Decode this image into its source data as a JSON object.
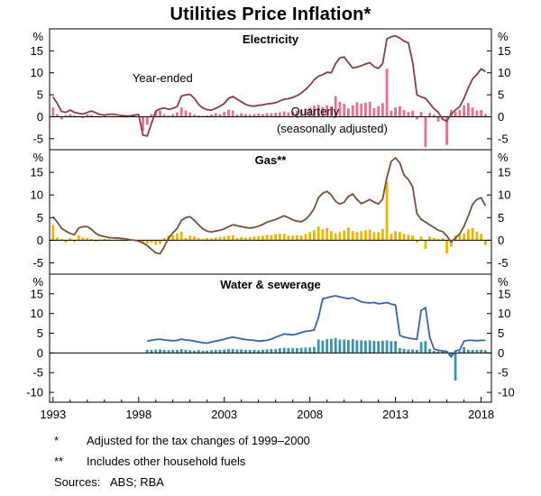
{
  "title": "Utilities Price Inflation*",
  "footnotes": [
    {
      "marker": "*",
      "text": "Adjusted for the tax changes of 1999–2000"
    },
    {
      "marker": "**",
      "text": "Includes other household fuels"
    }
  ],
  "sources": {
    "label": "Sources:",
    "text": "ABS; RBA"
  },
  "x_axis": {
    "period": "quarterly",
    "start_year": 1993,
    "range": [
      1992.8,
      2018.6
    ],
    "tick_years": [
      1993,
      1998,
      2003,
      2008,
      2013,
      2018
    ]
  },
  "chart_data": [
    {
      "type": "line+bar",
      "panel_title": "Electricity",
      "unit": "%",
      "ylim": [
        -7.5,
        20
      ],
      "yticks": [
        -5,
        0,
        5,
        10,
        15
      ],
      "line": {
        "name": "Year-ended",
        "color": "#8A3E44",
        "values": [
          4.5,
          3.0,
          1.2,
          1.0,
          1.5,
          1.0,
          0.8,
          0.6,
          1.0,
          1.3,
          0.9,
          0.5,
          0.4,
          0.5,
          0.6,
          0.4,
          0.3,
          0.2,
          0.2,
          0.4,
          0.5,
          -4.2,
          -4.4,
          -1.5,
          1.3,
          1.8,
          2.0,
          1.7,
          1.9,
          2.3,
          4.7,
          5.0,
          5.1,
          4.2,
          2.8,
          2.0,
          1.6,
          1.5,
          1.9,
          2.4,
          3.0,
          4.2,
          4.6,
          4.0,
          3.4,
          2.8,
          2.5,
          2.4,
          2.6,
          2.7,
          2.9,
          3.0,
          3.2,
          3.6,
          4.0,
          4.1,
          4.4,
          4.8,
          5.4,
          6.2,
          7.2,
          8.4,
          9.2,
          9.6,
          10.1,
          10.0,
          12.1,
          13.4,
          13.6,
          12.3,
          11.1,
          11.3,
          11.6,
          12.0,
          12.3,
          11.4,
          11.0,
          12.1,
          17.7,
          18.2,
          18.4,
          17.9,
          17.2,
          16.8,
          12.5,
          5.0,
          4.5,
          4.2,
          3.0,
          1.8,
          1.0,
          -0.6,
          -1.0,
          0.6,
          1.5,
          2.3,
          4.2,
          6.6,
          8.6,
          9.6,
          10.9,
          10.3
        ]
      },
      "bars": {
        "name": "Quarterly (seasonally adjusted)",
        "color": "#E8708C",
        "values": [
          2.1,
          0.6,
          -0.6,
          0.4,
          0.6,
          0.3,
          0.2,
          -0.3,
          0.6,
          0.4,
          0.2,
          -0.2,
          0.2,
          0.1,
          0.2,
          0.1,
          0.1,
          -0.2,
          0.1,
          0.2,
          0.2,
          -3.2,
          -1.8,
          0.6,
          1.1,
          1.4,
          0.5,
          0.3,
          0.6,
          1.0,
          2.1,
          1.4,
          1.0,
          0.5,
          0.3,
          0.2,
          0.3,
          0.5,
          0.8,
          0.6,
          1.1,
          1.6,
          1.4,
          0.5,
          0.8,
          0.6,
          0.5,
          0.6,
          0.7,
          0.6,
          0.8,
          0.8,
          0.9,
          1.0,
          1.2,
          1.0,
          1.2,
          1.4,
          1.5,
          1.9,
          2.1,
          2.5,
          2.7,
          2.2,
          2.6,
          2.3,
          4.7,
          3.4,
          2.9,
          1.9,
          2.6,
          3.3,
          3.0,
          3.2,
          3.4,
          2.0,
          2.4,
          3.1,
          10.9,
          1.4,
          2.1,
          2.4,
          1.5,
          1.1,
          1.4,
          -0.6,
          1.1,
          -6.9,
          0.9,
          0.5,
          -1.1,
          -0.5,
          -6.4,
          1.6,
          1.1,
          1.5,
          2.6,
          3.1,
          2.1,
          1.4,
          1.5,
          0.6
        ]
      },
      "annotations": [
        {
          "text": "Year-ended",
          "x": 1999.4,
          "y": 7.9,
          "color": "#8A3E44"
        },
        {
          "text": "Quarterly",
          "x": 2008.3,
          "y": 0.3,
          "color": "#E8708C"
        },
        {
          "text": "(seasonally adjusted)",
          "x": 2009.3,
          "y": -3.6,
          "color": "#E8708C"
        }
      ]
    },
    {
      "type": "line+bar",
      "panel_title": "Gas**",
      "unit": "%",
      "ylim": [
        -7.5,
        20
      ],
      "yticks": [
        -5,
        0,
        5,
        10,
        15
      ],
      "line": {
        "name": "Year-ended",
        "color": "#75503C",
        "values": [
          5.2,
          4.0,
          2.6,
          2.0,
          1.5,
          1.2,
          2.7,
          3.0,
          3.0,
          2.4,
          1.5,
          1.0,
          0.8,
          0.6,
          0.5,
          0.5,
          0.4,
          0.3,
          0.1,
          0.0,
          -0.2,
          -0.6,
          -1.2,
          -2.0,
          -2.8,
          -3.0,
          -1.4,
          0.5,
          1.6,
          2.6,
          4.4,
          5.0,
          5.2,
          4.4,
          3.4,
          2.5,
          2.0,
          1.8,
          2.0,
          2.2,
          2.5,
          3.0,
          3.4,
          3.2,
          3.0,
          2.8,
          2.7,
          2.8,
          3.1,
          3.5,
          4.0,
          4.3,
          4.6,
          5.0,
          5.4,
          5.0,
          4.5,
          4.2,
          4.1,
          4.6,
          5.6,
          7.0,
          9.4,
          10.4,
          10.8,
          10.0,
          8.6,
          8.0,
          8.4,
          9.7,
          10.2,
          9.0,
          8.1,
          8.5,
          9.0,
          8.4,
          8.0,
          9.1,
          13.9,
          17.4,
          18.2,
          17.1,
          14.4,
          13.4,
          11.8,
          5.9,
          4.6,
          4.0,
          3.4,
          2.8,
          2.2,
          1.9,
          0.9,
          -0.4,
          0.5,
          1.4,
          3.1,
          5.4,
          7.9,
          9.0,
          9.4,
          7.6
        ]
      },
      "bars": {
        "name": "Quarterly (seasonally adjusted)",
        "color": "#F0B400",
        "values": [
          3.4,
          0.6,
          0.3,
          -0.5,
          0.5,
          -0.4,
          1.1,
          0.6,
          0.5,
          0.3,
          -0.3,
          0.2,
          0.3,
          0.2,
          0.1,
          0.2,
          0.2,
          -0.2,
          0.1,
          -0.1,
          -0.3,
          -0.6,
          -0.8,
          -0.5,
          -1.0,
          -0.8,
          0.5,
          1.0,
          1.1,
          1.5,
          1.9,
          0.5,
          1.0,
          0.8,
          0.5,
          0.3,
          0.5,
          0.4,
          0.6,
          0.7,
          0.8,
          1.0,
          1.1,
          0.5,
          0.7,
          0.6,
          0.7,
          0.8,
          0.9,
          1.0,
          1.2,
          1.1,
          1.3,
          1.4,
          1.4,
          1.0,
          1.0,
          1.1,
          1.0,
          1.4,
          1.8,
          2.2,
          3.0,
          2.4,
          2.7,
          2.0,
          1.5,
          1.8,
          2.1,
          2.8,
          2.0,
          1.8,
          2.0,
          2.2,
          2.3,
          1.8,
          1.8,
          2.5,
          12.9,
          1.4,
          2.0,
          1.8,
          1.4,
          1.2,
          1.0,
          -0.5,
          0.8,
          -1.9,
          0.8,
          0.5,
          0.3,
          0.5,
          -2.9,
          -1.4,
          1.0,
          1.2,
          1.5,
          2.4,
          2.7,
          1.9,
          1.4,
          -1.1
        ]
      },
      "annotations": []
    },
    {
      "type": "line+bar",
      "panel_title": "Water & sewerage",
      "unit": "%",
      "ylim": [
        -12.5,
        20
      ],
      "yticks": [
        -10,
        -5,
        0,
        5,
        10,
        15
      ],
      "line": {
        "name": "Year-ended",
        "color": "#3A62A8",
        "values": [
          null,
          null,
          null,
          null,
          null,
          null,
          null,
          null,
          null,
          null,
          null,
          null,
          null,
          null,
          null,
          null,
          null,
          null,
          null,
          null,
          null,
          null,
          3.0,
          3.2,
          3.4,
          3.5,
          3.3,
          3.2,
          3.1,
          3.2,
          3.5,
          3.3,
          3.2,
          3.0,
          2.8,
          2.6,
          2.5,
          2.8,
          3.0,
          3.2,
          3.5,
          3.8,
          4.0,
          3.8,
          3.6,
          3.4,
          3.3,
          3.2,
          3.0,
          3.1,
          3.2,
          3.5,
          4.0,
          4.4,
          4.8,
          4.7,
          4.6,
          4.8,
          5.2,
          5.5,
          5.6,
          5.8,
          9.0,
          13.8,
          14.0,
          14.3,
          14.5,
          14.2,
          14.0,
          13.8,
          14.0,
          13.5,
          13.0,
          12.8,
          12.7,
          12.8,
          12.5,
          12.6,
          12.8,
          12.4,
          12.2,
          4.5,
          4.0,
          3.8,
          3.6,
          3.5,
          10.8,
          11.5,
          4.0,
          1.0,
          0.7,
          0.5,
          0.4,
          -1.0,
          0.5,
          0.8,
          3.0,
          3.2,
          3.2,
          3.1,
          3.2,
          3.2
        ]
      },
      "bars": {
        "name": "Quarterly (seasonally adjusted)",
        "color": "#3E93AC",
        "values": [
          null,
          null,
          null,
          null,
          null,
          null,
          null,
          null,
          null,
          null,
          null,
          null,
          null,
          null,
          null,
          null,
          null,
          null,
          null,
          null,
          null,
          null,
          0.8,
          0.8,
          0.9,
          0.9,
          0.8,
          0.7,
          0.8,
          0.8,
          1.0,
          0.8,
          0.7,
          0.6,
          0.7,
          0.6,
          0.6,
          0.7,
          0.8,
          0.8,
          0.9,
          1.0,
          1.0,
          0.9,
          0.9,
          0.8,
          0.8,
          0.8,
          0.7,
          0.8,
          0.9,
          1.0,
          1.0,
          1.2,
          1.3,
          1.2,
          1.2,
          1.2,
          1.3,
          1.4,
          1.4,
          1.5,
          3.4,
          3.1,
          3.5,
          3.6,
          3.8,
          3.4,
          3.4,
          3.3,
          3.5,
          3.2,
          3.2,
          3.1,
          3.2,
          3.1,
          3.0,
          3.1,
          3.2,
          3.0,
          3.0,
          1.2,
          1.0,
          0.9,
          0.9,
          0.8,
          2.8,
          3.0,
          1.0,
          0.5,
          0.4,
          0.4,
          0.3,
          -0.5,
          -7.0,
          0.5,
          1.5,
          0.8,
          0.8,
          0.8,
          0.8,
          0.7
        ]
      },
      "annotations": []
    }
  ]
}
